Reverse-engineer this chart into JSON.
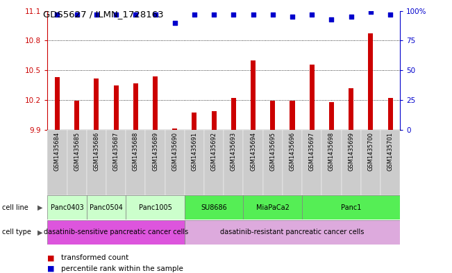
{
  "title": "GDS5627 / ILMN_1728163",
  "samples": [
    "GSM1435684",
    "GSM1435685",
    "GSM1435686",
    "GSM1435687",
    "GSM1435688",
    "GSM1435689",
    "GSM1435690",
    "GSM1435691",
    "GSM1435692",
    "GSM1435693",
    "GSM1435694",
    "GSM1435695",
    "GSM1435696",
    "GSM1435697",
    "GSM1435698",
    "GSM1435699",
    "GSM1435700",
    "GSM1435701"
  ],
  "bar_values": [
    10.43,
    10.19,
    10.42,
    10.35,
    10.37,
    10.44,
    9.91,
    10.07,
    10.09,
    10.22,
    10.6,
    10.19,
    10.19,
    10.56,
    10.18,
    10.32,
    10.87,
    10.22
  ],
  "percentile_values": [
    97,
    97,
    97,
    97,
    97,
    97,
    90,
    97,
    97,
    97,
    97,
    97,
    95,
    97,
    93,
    95,
    99,
    97
  ],
  "ylim": [
    9.9,
    11.1
  ],
  "yticks": [
    9.9,
    10.2,
    10.5,
    10.8,
    11.1
  ],
  "right_yticks": [
    0,
    25,
    50,
    75,
    100
  ],
  "right_ylim": [
    0,
    100
  ],
  "bar_color": "#cc0000",
  "dot_color": "#0000cc",
  "cell_line_groups": [
    {
      "label": "Panc0403",
      "start": 0,
      "end": 2,
      "color": "#ccffcc"
    },
    {
      "label": "Panc0504",
      "start": 2,
      "end": 4,
      "color": "#ccffcc"
    },
    {
      "label": "Panc1005",
      "start": 4,
      "end": 7,
      "color": "#ccffcc"
    },
    {
      "label": "SU8686",
      "start": 7,
      "end": 10,
      "color": "#55ee55"
    },
    {
      "label": "MiaPaCa2",
      "start": 10,
      "end": 13,
      "color": "#55ee55"
    },
    {
      "label": "Panc1",
      "start": 13,
      "end": 18,
      "color": "#55ee55"
    }
  ],
  "cell_type_groups": [
    {
      "label": "dasatinib-sensitive pancreatic cancer cells",
      "start": 0,
      "end": 7,
      "color": "#dd55dd"
    },
    {
      "label": "dasatinib-resistant pancreatic cancer cells",
      "start": 7,
      "end": 18,
      "color": "#ddaadd"
    }
  ],
  "legend_items": [
    {
      "color": "#cc0000",
      "label": "transformed count"
    },
    {
      "color": "#0000cc",
      "label": "percentile rank within the sample"
    }
  ],
  "sample_bg_color": "#cccccc",
  "bar_width": 0.25
}
